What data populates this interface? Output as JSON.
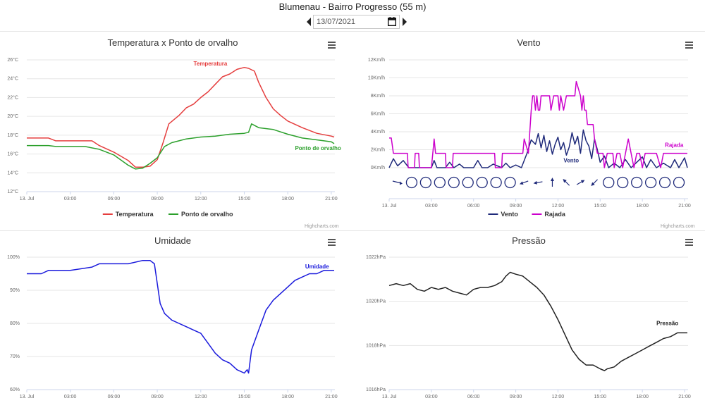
{
  "page": {
    "title": "Blumenau - Bairro Progresso (55 m)",
    "date": "13/07/2021",
    "credits": "Highcharts.com",
    "icons": {
      "prev": "caret-left-icon",
      "next": "caret-right-icon",
      "calendar": "calendar-icon",
      "menu": "hamburger-menu-icon"
    }
  },
  "chart_data": [
    {
      "id": "temp",
      "type": "line",
      "title": "Temperatura x Ponto de orvalho",
      "x_ticks": [
        "13. Jul",
        "03:00",
        "06:00",
        "09:00",
        "12:00",
        "15:00",
        "18:00",
        "21:00"
      ],
      "x_unit": "hours",
      "xlim": [
        0,
        21.25
      ],
      "ylim": [
        12,
        26
      ],
      "y_ticks": [
        "12°C",
        "14°C",
        "16°C",
        "18°C",
        "20°C",
        "22°C",
        "24°C",
        "26°C"
      ],
      "legend": "bottom",
      "series": [
        {
          "name": "Temperatura",
          "color": "#e53e3e",
          "label_at": [
            11.5,
            25.4
          ],
          "x": [
            0,
            1.5,
            2,
            4.5,
            5,
            6,
            7,
            7.5,
            8,
            8.5,
            9,
            9.4,
            9.8,
            10.5,
            11,
            11.5,
            12,
            12.5,
            13,
            13.5,
            14,
            14.5,
            15,
            15.3,
            15.7,
            16,
            16.5,
            17,
            17.5,
            18,
            19,
            20,
            21,
            21.2
          ],
          "y": [
            17.7,
            17.7,
            17.4,
            17.4,
            16.9,
            16.2,
            15.3,
            14.6,
            14.6,
            14.7,
            15.4,
            17.2,
            19.2,
            20.1,
            20.9,
            21.3,
            22.0,
            22.6,
            23.4,
            24.2,
            24.5,
            25.0,
            25.2,
            25.1,
            24.8,
            23.6,
            22.0,
            20.8,
            20.1,
            19.5,
            18.8,
            18.2,
            17.9,
            17.8
          ]
        },
        {
          "name": "Ponto de orvalho",
          "color": "#2ca02c",
          "label_at": [
            18.5,
            16.4
          ],
          "x": [
            0,
            1.5,
            2,
            4,
            5,
            6,
            7,
            7.5,
            8,
            8.5,
            9,
            9.5,
            10,
            11,
            12,
            13,
            14,
            15,
            15.3,
            15.5,
            16,
            17,
            18,
            19,
            20,
            21,
            21.2
          ],
          "y": [
            16.9,
            16.9,
            16.8,
            16.8,
            16.5,
            15.9,
            14.8,
            14.4,
            14.5,
            15.0,
            15.6,
            16.8,
            17.2,
            17.6,
            17.8,
            17.9,
            18.1,
            18.2,
            18.3,
            19.2,
            18.8,
            18.6,
            18.1,
            17.7,
            17.5,
            17.3,
            17.1
          ]
        }
      ]
    },
    {
      "id": "wind",
      "type": "line",
      "title": "Vento",
      "x_ticks": [
        "13. Jul",
        "03:00",
        "06:00",
        "09:00",
        "12:00",
        "15:00",
        "18:00",
        "21:00"
      ],
      "x_unit": "hours",
      "xlim": [
        0,
        21.25
      ],
      "ylim": [
        0,
        12
      ],
      "y_ticks": [
        "0Km/h",
        "2Km/h",
        "4Km/h",
        "6Km/h",
        "8Km/h",
        "10Km/h",
        "12Km/h"
      ],
      "legend": "bottom",
      "series": [
        {
          "name": "Vento",
          "color": "#1f2a7a",
          "label_at": [
            12.4,
            0.6
          ],
          "x": [
            0,
            0.3,
            0.6,
            1,
            1.4,
            2,
            3,
            3.2,
            3.4,
            4,
            4.3,
            4.6,
            5,
            5.3,
            6,
            6.3,
            6.6,
            7,
            7.4,
            8,
            8.3,
            8.6,
            9,
            9.4,
            9.8,
            10.1,
            10.4,
            10.6,
            10.8,
            11,
            11.2,
            11.4,
            11.6,
            11.8,
            12,
            12.2,
            12.4,
            12.6,
            12.8,
            13,
            13.2,
            13.4,
            13.6,
            13.8,
            14,
            14.2,
            14.4,
            14.6,
            14.8,
            15,
            15.3,
            15.6,
            16,
            16.4,
            16.8,
            17.2,
            17.6,
            18,
            18.3,
            18.6,
            19,
            19.5,
            20,
            20.3,
            20.6,
            21,
            21.2
          ],
          "y": [
            0,
            1,
            0.2,
            0.8,
            0,
            0,
            0,
            0.8,
            0,
            0,
            0.6,
            0,
            0.4,
            0,
            0,
            0.8,
            0,
            0,
            0.4,
            0,
            0.5,
            0,
            0.3,
            0,
            1.6,
            3.1,
            2.6,
            3.8,
            2.2,
            3.6,
            1.8,
            3.0,
            1.5,
            2.6,
            3.4,
            2.0,
            2.8,
            1.4,
            2.3,
            3.9,
            2.6,
            3.5,
            1.6,
            4.2,
            3.0,
            2.4,
            1.0,
            3.2,
            2.0,
            0.6,
            1.3,
            0,
            0.5,
            0,
            0.9,
            0,
            0.6,
            1.2,
            0,
            0.9,
            0,
            0.5,
            0,
            0.9,
            0,
            1.1,
            0
          ]
        },
        {
          "name": "Rajada",
          "color": "#cc00cc",
          "label_at": [
            19.6,
            2.3
          ],
          "x": [
            0,
            0.15,
            0.3,
            1,
            1.3,
            1.35,
            1.8,
            1.85,
            2.1,
            2.15,
            3,
            3.1,
            3.2,
            3.3,
            4,
            4.05,
            4.5,
            4.55,
            5.2,
            5.25,
            7.5,
            7.55,
            8,
            8.05,
            9,
            9.5,
            9.6,
            9.9,
            10.1,
            10.2,
            10.3,
            10.4,
            10.5,
            10.6,
            10.7,
            10.8,
            11.4,
            11.5,
            11.7,
            12,
            12.1,
            12.2,
            12.4,
            12.6,
            13.2,
            13.3,
            13.6,
            13.7,
            13.8,
            13.9,
            14,
            14.1,
            14.5,
            14.6,
            14.8,
            15.2,
            15.3,
            15.5,
            15.9,
            16,
            16.2,
            16.4,
            16.6,
            16.8,
            17,
            17.2,
            17.4,
            17.6,
            17.8,
            18,
            18.2,
            18.5,
            19,
            19.3,
            19.5,
            19.8,
            20,
            20.5,
            21,
            21.2
          ],
          "y": [
            3.3,
            3.3,
            1.6,
            1.6,
            1.6,
            0,
            0,
            1.6,
            1.6,
            0,
            0,
            1.6,
            3.2,
            1.6,
            1.6,
            0,
            0,
            1.6,
            1.6,
            1.6,
            1.6,
            0,
            0,
            1.6,
            1.6,
            1.6,
            3.2,
            1.6,
            6.4,
            8.0,
            8.0,
            6.4,
            8.0,
            6.4,
            6.4,
            8.0,
            8.0,
            6.4,
            8.0,
            8.0,
            6.4,
            8.0,
            6.4,
            8.0,
            8.0,
            9.6,
            8.0,
            6.4,
            8.0,
            6.4,
            6.4,
            4.8,
            4.8,
            3.2,
            1.6,
            1.6,
            0,
            1.6,
            1.6,
            0,
            1.6,
            1.6,
            0,
            1.6,
            3.2,
            1.6,
            0,
            1.6,
            1.6,
            0,
            1.6,
            1.6,
            1.6,
            0,
            1.6,
            1.6,
            1.6,
            1.6,
            1.6,
            1.6
          ]
        }
      ],
      "direction_markers": {
        "x": [
          0.6,
          1.6,
          2.6,
          3.6,
          4.6,
          5.6,
          6.6,
          7.6,
          8.6,
          9.6,
          10.6,
          11.6,
          12.6,
          13.6,
          14.6,
          15.6,
          16.6,
          17.6,
          18.6,
          19.6,
          20.6
        ],
        "dir": [
          "calm-or-arrow-east",
          "calm",
          "calm",
          "calm",
          "calm",
          "calm",
          "calm",
          "calm",
          "calm",
          "arrow-sw",
          "arrow-w",
          "arrow-n",
          "arrow-nw",
          "arrow-se",
          "arrow-sw",
          "calm",
          "calm",
          "calm",
          "calm",
          "calm",
          "calm"
        ],
        "deg": [
          90,
          null,
          null,
          null,
          null,
          null,
          null,
          null,
          null,
          250,
          260,
          0,
          315,
          60,
          225,
          null,
          null,
          null,
          null,
          null,
          null
        ]
      }
    },
    {
      "id": "hum",
      "type": "line",
      "title": "Umidade",
      "x_ticks": [
        "13. Jul",
        "03:00",
        "06:00",
        "09:00",
        "12:00",
        "15:00",
        "18:00",
        "21:00"
      ],
      "x_unit": "hours",
      "xlim": [
        0,
        21.25
      ],
      "ylim": [
        60,
        100
      ],
      "y_ticks": [
        "60%",
        "70%",
        "80%",
        "90%",
        "100%"
      ],
      "series": [
        {
          "name": "Umidade",
          "color": "#1a1adc",
          "label_at": [
            19.2,
            96.6
          ],
          "x": [
            0,
            1,
            1.5,
            3,
            4.5,
            5,
            6,
            7,
            8,
            8.5,
            8.8,
            9,
            9.2,
            9.5,
            10,
            10.5,
            11,
            11.5,
            12,
            12.5,
            13,
            13.5,
            14,
            14.5,
            15,
            15.2,
            15.3,
            15.5,
            16,
            16.5,
            17,
            17.5,
            18,
            18.5,
            19,
            19.5,
            20,
            20.5,
            21,
            21.2
          ],
          "y": [
            95,
            95,
            96,
            96,
            97,
            98,
            98,
            98,
            99,
            99,
            98,
            92,
            86,
            83,
            81,
            80,
            79,
            78,
            77,
            74,
            71,
            69,
            68,
            66,
            65,
            66,
            65,
            72,
            78,
            84,
            87,
            89,
            91,
            93,
            94,
            95,
            95,
            96,
            96,
            96
          ]
        }
      ]
    },
    {
      "id": "press",
      "type": "line",
      "title": "Pressão",
      "x_ticks": [
        "13. Jul",
        "03:00",
        "06:00",
        "09:00",
        "12:00",
        "15:00",
        "18:00",
        "21:00"
      ],
      "x_unit": "hours",
      "xlim": [
        0,
        21.25
      ],
      "ylim": [
        1016,
        1023
      ],
      "y_ticks": [
        "1016hPa",
        "1018hPa",
        "1020hPa",
        "1022hPa"
      ],
      "series": [
        {
          "name": "Pressão",
          "color": "#222222",
          "label_at": [
            19.0,
            1019.4
          ],
          "x": [
            0,
            0.5,
            1,
            1.5,
            2,
            2.5,
            3,
            3.5,
            4,
            4.5,
            5,
            5.5,
            6,
            6.5,
            7,
            7.5,
            8,
            8.3,
            8.6,
            9,
            9.5,
            10,
            10.5,
            11,
            11.5,
            12,
            12.5,
            13,
            13.5,
            14,
            14.5,
            15,
            15.3,
            15.5,
            16,
            16.5,
            17,
            17.5,
            18,
            18.5,
            19,
            19.5,
            20,
            20.5,
            21,
            21.2
          ],
          "y": [
            1021.5,
            1021.6,
            1021.5,
            1021.6,
            1021.3,
            1021.2,
            1021.4,
            1021.3,
            1021.4,
            1021.2,
            1021.1,
            1021.0,
            1021.3,
            1021.4,
            1021.4,
            1021.5,
            1021.7,
            1022.0,
            1022.2,
            1022.1,
            1022.0,
            1021.7,
            1021.4,
            1021.0,
            1020.4,
            1019.7,
            1018.9,
            1018.1,
            1017.6,
            1017.3,
            1017.3,
            1017.1,
            1017.0,
            1017.1,
            1017.2,
            1017.5,
            1017.7,
            1017.9,
            1018.1,
            1018.3,
            1018.5,
            1018.7,
            1018.8,
            1019.0,
            1019.0,
            1019.0
          ]
        }
      ]
    }
  ]
}
